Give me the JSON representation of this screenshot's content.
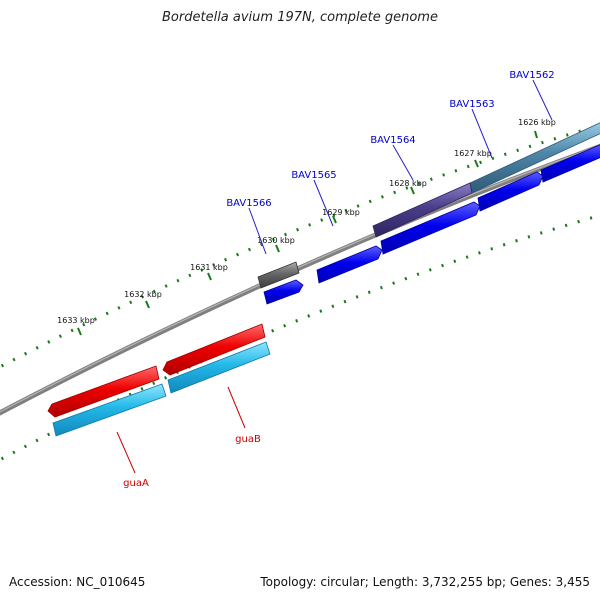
{
  "title": "Bordetella avium 197N, complete genome",
  "footer": {
    "accession": "Accession: NC_010645",
    "stats": "Topology: circular; Length: 3,732,255 bp; Genes: 3,455"
  },
  "scale_labels": [
    "1626 kbp",
    "1627 kbp",
    "1628 kbp",
    "1629 kbp",
    "1630 kbp",
    "1631 kbp",
    "1632 kbp",
    "1633 kbp"
  ],
  "gene_labels": {
    "bav1562": "BAV1562",
    "bav1563": "BAV1563",
    "bav1564": "BAV1564",
    "bav1565": "BAV1565",
    "bav1566": "BAV1566",
    "guaB": "guaB",
    "guaA": "guaA"
  },
  "colors": {
    "backbone": "#808080",
    "tick": "#1a7a1a",
    "cds_blue": "#0000ee",
    "feature_purple": "#4a3d8a",
    "feature_teal": "#4f86a8",
    "feature_gray": "#666666",
    "gene_red": "#ee0000",
    "gene_cyan": "#22b8e8",
    "label_blue": "#0000cc",
    "label_red": "#cc0000"
  }
}
